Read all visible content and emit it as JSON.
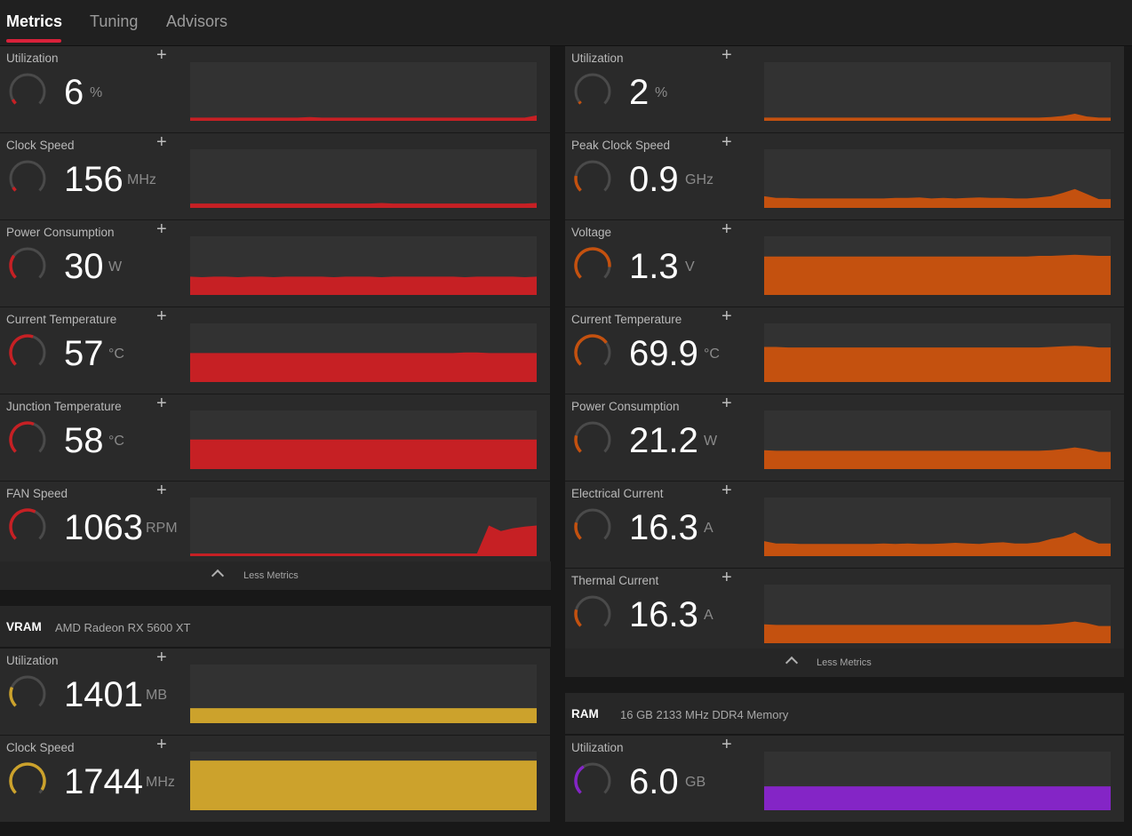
{
  "tabs": [
    {
      "label": "Metrics",
      "active": true
    },
    {
      "label": "Tuning",
      "active": false
    },
    {
      "label": "Advisors",
      "active": false
    }
  ],
  "colors": {
    "red": "#c62024",
    "orange": "#c4510f",
    "yellow": "#cca22c",
    "purple": "#8425c6",
    "accent": "#d8213a"
  },
  "left_metrics": [
    {
      "label": "Utilization",
      "value": "6",
      "unit": "%",
      "color": "red",
      "level": 0.06,
      "series": [
        1,
        1,
        1,
        1,
        1,
        1,
        1,
        1,
        1,
        1,
        2,
        1,
        1,
        1,
        1,
        1,
        1,
        1,
        1,
        1,
        1,
        1,
        1,
        1,
        1,
        1,
        1,
        1,
        1,
        5
      ]
    },
    {
      "label": "Clock Speed",
      "value": "156",
      "unit": "MHz",
      "color": "red",
      "level": 0.05,
      "series": [
        3,
        3,
        3,
        3,
        3,
        3,
        3,
        3,
        3,
        3,
        3,
        3,
        3,
        3,
        3,
        3,
        4,
        3,
        3,
        3,
        3,
        3,
        3,
        3,
        3,
        3,
        3,
        3,
        3,
        4
      ]
    },
    {
      "label": "Power Consumption",
      "value": "30",
      "unit": "W",
      "color": "red",
      "level": 0.3,
      "series": [
        28,
        27,
        28,
        28,
        27,
        28,
        28,
        27,
        28,
        28,
        28,
        28,
        27,
        28,
        28,
        28,
        27,
        28,
        28,
        28,
        28,
        28,
        28,
        27,
        28,
        28,
        28,
        28,
        27,
        28
      ]
    },
    {
      "label": "Current Temperature",
      "value": "57",
      "unit": "°C",
      "color": "red",
      "level": 0.57,
      "series": [
        47,
        47,
        47,
        47,
        47,
        47,
        47,
        47,
        47,
        47,
        47,
        47,
        47,
        47,
        47,
        47,
        47,
        47,
        47,
        47,
        47,
        47,
        47,
        48,
        48,
        47,
        47,
        47,
        47,
        47
      ]
    },
    {
      "label": "Junction Temperature",
      "value": "58",
      "unit": "°C",
      "color": "red",
      "level": 0.58,
      "series": [
        48,
        48,
        48,
        48,
        48,
        48,
        48,
        48,
        48,
        48,
        48,
        48,
        48,
        48,
        48,
        48,
        48,
        48,
        48,
        48,
        48,
        48,
        48,
        48,
        48,
        48,
        48,
        48,
        48,
        48
      ]
    },
    {
      "label": "FAN Speed",
      "value": "1063",
      "unit": "RPM",
      "color": "red",
      "level": 0.6,
      "series": [
        0,
        0,
        0,
        0,
        0,
        0,
        0,
        0,
        0,
        0,
        0,
        0,
        0,
        0,
        0,
        0,
        0,
        0,
        0,
        0,
        0,
        0,
        0,
        0,
        0,
        50,
        40,
        45,
        48,
        50
      ]
    }
  ],
  "left_footer": "Less Metrics",
  "vram": {
    "name": "VRAM",
    "subtitle": "AMD Radeon RX 5600 XT",
    "metrics": [
      {
        "label": "Utilization",
        "value": "1401",
        "unit": "MB",
        "color": "yellow",
        "level": 0.25,
        "series": [
          22,
          22,
          22,
          22,
          22,
          22,
          22,
          22,
          22,
          22,
          22,
          22,
          22,
          22,
          22,
          22,
          22,
          22,
          22,
          22,
          22,
          22,
          22,
          22,
          22,
          22,
          22,
          22,
          22,
          22
        ]
      },
      {
        "label": "Clock Speed",
        "value": "1744",
        "unit": "MHz",
        "color": "yellow",
        "level": 0.95,
        "series": [
          84,
          84,
          84,
          84,
          84,
          84,
          84,
          84,
          84,
          84,
          84,
          84,
          84,
          84,
          84,
          84,
          84,
          84,
          84,
          84,
          84,
          84,
          84,
          84,
          84,
          84,
          84,
          84,
          84,
          84
        ]
      }
    ]
  },
  "right_metrics": [
    {
      "label": "Utilization",
      "value": "2",
      "unit": "%",
      "color": "orange",
      "level": 0.03,
      "series": [
        1,
        1,
        1,
        1,
        1,
        1,
        1,
        1,
        1,
        1,
        1,
        1,
        1,
        1,
        1,
        1,
        1,
        1,
        1,
        1,
        1,
        1,
        1,
        1,
        2,
        4,
        8,
        3,
        1,
        1
      ]
    },
    {
      "label": "Peak Clock Speed",
      "value": "0.9",
      "unit": "GHz",
      "color": "orange",
      "level": 0.2,
      "series": [
        16,
        13,
        13,
        12,
        12,
        12,
        12,
        12,
        12,
        12,
        12,
        13,
        13,
        14,
        12,
        13,
        12,
        13,
        14,
        13,
        13,
        12,
        12,
        14,
        16,
        22,
        29,
        20,
        11,
        11
      ]
    },
    {
      "label": "Voltage",
      "value": "1.3",
      "unit": "V",
      "color": "orange",
      "level": 0.85,
      "series": [
        64,
        64,
        64,
        64,
        64,
        64,
        64,
        64,
        64,
        64,
        64,
        64,
        64,
        64,
        64,
        64,
        64,
        64,
        64,
        64,
        64,
        64,
        64,
        65,
        65,
        66,
        67,
        66,
        65,
        65
      ]
    },
    {
      "label": "Current Temperature",
      "value": "69.9",
      "unit": "°C",
      "color": "orange",
      "level": 0.7,
      "series": [
        58,
        58,
        57,
        57,
        57,
        57,
        57,
        57,
        57,
        57,
        57,
        57,
        57,
        57,
        57,
        57,
        57,
        57,
        57,
        57,
        57,
        57,
        57,
        57,
        58,
        59,
        60,
        59,
        57,
        57
      ]
    },
    {
      "label": "Power Consumption",
      "value": "21.2",
      "unit": "W",
      "color": "orange",
      "level": 0.22,
      "series": [
        29,
        28,
        28,
        28,
        28,
        28,
        28,
        28,
        28,
        28,
        28,
        28,
        28,
        28,
        28,
        28,
        28,
        28,
        28,
        28,
        28,
        28,
        28,
        28,
        29,
        31,
        34,
        31,
        26,
        26
      ]
    },
    {
      "label": "Electrical Current",
      "value": "16.3",
      "unit": "A",
      "color": "orange",
      "level": 0.22,
      "series": [
        22,
        18,
        18,
        17,
        17,
        17,
        17,
        17,
        17,
        17,
        18,
        17,
        18,
        17,
        17,
        18,
        19,
        18,
        17,
        19,
        20,
        18,
        18,
        20,
        26,
        30,
        38,
        26,
        18,
        18
      ]
    },
    {
      "label": "Thermal Current",
      "value": "16.3",
      "unit": "A",
      "color": "orange",
      "level": 0.22,
      "series": [
        29,
        28,
        28,
        28,
        28,
        28,
        28,
        28,
        28,
        28,
        28,
        28,
        28,
        28,
        28,
        28,
        28,
        28,
        28,
        28,
        28,
        28,
        28,
        28,
        29,
        31,
        34,
        31,
        26,
        26
      ]
    }
  ],
  "right_footer": "Less Metrics",
  "ram": {
    "name": "RAM",
    "subtitle": "16 GB 2133 MHz DDR4 Memory",
    "metrics": [
      {
        "label": "Utilization",
        "value": "6.0",
        "unit": "GB",
        "color": "purple",
        "level": 0.38,
        "series": [
          38,
          38,
          38,
          38,
          38,
          38,
          38,
          38,
          38,
          38,
          38,
          38,
          38,
          38,
          38,
          38,
          38,
          38,
          38,
          38,
          38,
          38,
          38,
          38,
          38,
          38,
          38,
          38,
          38,
          38
        ]
      }
    ]
  }
}
